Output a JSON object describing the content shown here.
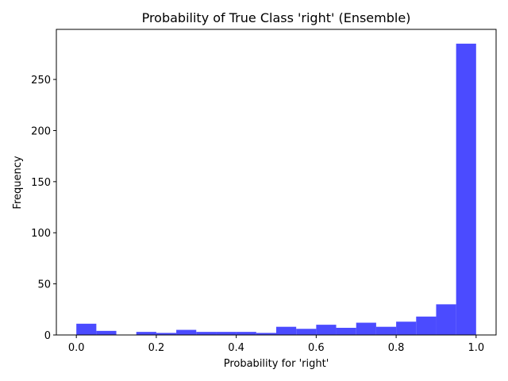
{
  "chart_data": {
    "type": "bar",
    "title": "Probability of True Class 'right' (Ensemble)",
    "xlabel": "Probability for 'right'",
    "ylabel": "Frequency",
    "bin_edges": [
      0.0,
      0.05,
      0.1,
      0.15,
      0.2,
      0.25,
      0.3,
      0.35,
      0.4,
      0.45,
      0.5,
      0.55,
      0.6,
      0.65,
      0.7,
      0.75,
      0.8,
      0.85,
      0.9,
      0.95,
      1.0
    ],
    "values": [
      11,
      4,
      0,
      3,
      2,
      5,
      3,
      3,
      3,
      2,
      8,
      6,
      10,
      7,
      12,
      8,
      13,
      18,
      30,
      285
    ],
    "xlim": [
      -0.05,
      1.05
    ],
    "ylim": [
      0,
      299
    ],
    "x_ticks": [
      0.0,
      0.2,
      0.4,
      0.6,
      0.8,
      1.0
    ],
    "x_tick_labels": [
      "0.0",
      "0.2",
      "0.4",
      "0.6",
      "0.8",
      "1.0"
    ],
    "y_ticks": [
      0,
      50,
      100,
      150,
      200,
      250
    ],
    "y_tick_labels": [
      "0",
      "50",
      "100",
      "150",
      "200",
      "250"
    ],
    "bar_color": "#4b4bff",
    "grid": false
  }
}
